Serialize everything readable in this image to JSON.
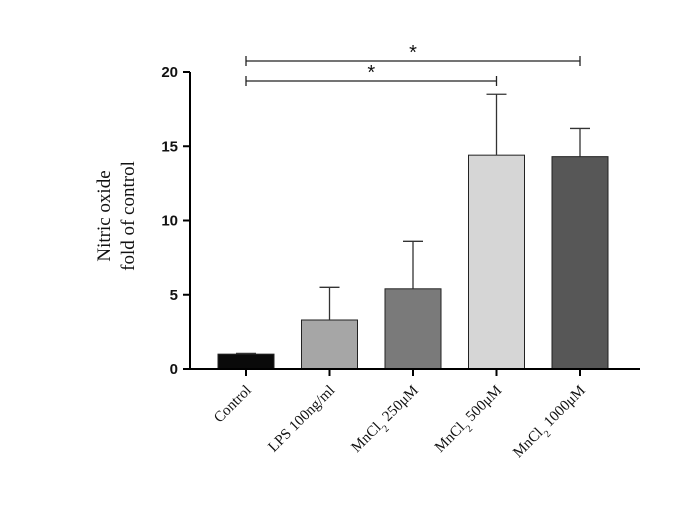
{
  "chart_data": {
    "type": "bar",
    "categories": [
      "Control",
      "LPS 100ng/ml",
      "MnCl2 250μM",
      "MnCl2 500μM",
      "MnCl2 1000μM"
    ],
    "category_labels": [
      {
        "text": "Control"
      },
      {
        "text": "LPS 100ng/ml"
      },
      {
        "pre": "MnCl",
        "sub": "2",
        "post": " 250μM"
      },
      {
        "pre": "MnCl",
        "sub": "2",
        "post": " 500μM"
      },
      {
        "pre": "MnCl",
        "sub": "2",
        "post": " 1000μM"
      }
    ],
    "values": [
      1.0,
      3.3,
      5.4,
      14.4,
      14.3
    ],
    "errors": [
      0.05,
      2.2,
      3.2,
      4.1,
      1.9
    ],
    "colors": [
      "#0a0a0a",
      "#a6a6a6",
      "#7a7a7a",
      "#d6d6d6",
      "#575757"
    ],
    "ylabel_lines": [
      "Nitric oxide",
      "fold of control"
    ],
    "xlabel": "",
    "ylim": [
      0,
      20
    ],
    "yticks": [
      0,
      5,
      10,
      15,
      20
    ],
    "grid": false,
    "significance": [
      {
        "from": 0,
        "to": 3,
        "label": "*"
      },
      {
        "from": 0,
        "to": 4,
        "label": "*"
      }
    ]
  }
}
